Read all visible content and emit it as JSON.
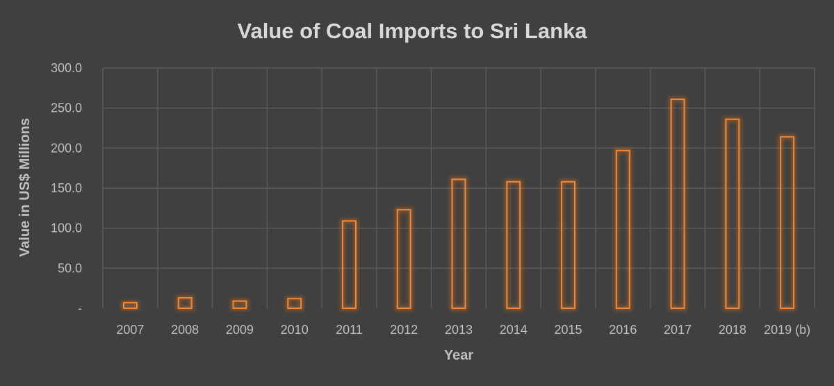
{
  "chart_data": {
    "type": "bar",
    "title": "Value of Coal Imports to Sri Lanka",
    "xlabel": "Year",
    "ylabel": "Value in US$ Millions",
    "categories": [
      "2007",
      "2008",
      "2009",
      "2010",
      "2011",
      "2012",
      "2013",
      "2014",
      "2015",
      "2016",
      "2017",
      "2018",
      "2019 (b)"
    ],
    "values": [
      7,
      13,
      9,
      12,
      109,
      123,
      161,
      158,
      158,
      197,
      261,
      236,
      214
    ],
    "ylim": [
      0,
      300
    ],
    "yticks": [
      {
        "value": 0,
        "label": "-"
      },
      {
        "value": 50,
        "label": "50.0"
      },
      {
        "value": 100,
        "label": "100.0"
      },
      {
        "value": 150,
        "label": "150.0"
      },
      {
        "value": 200,
        "label": "200.0"
      },
      {
        "value": 250,
        "label": "250.0"
      },
      {
        "value": 300,
        "label": "300.0"
      }
    ],
    "grid": true,
    "legend": "none",
    "colors": {
      "background": "#404040",
      "bar_outline": "#f08a3a",
      "bar_glow": "#ff7a10",
      "grid": "#5a5a5a",
      "text": "#bfbfbf",
      "title": "#d9d9d9"
    }
  }
}
